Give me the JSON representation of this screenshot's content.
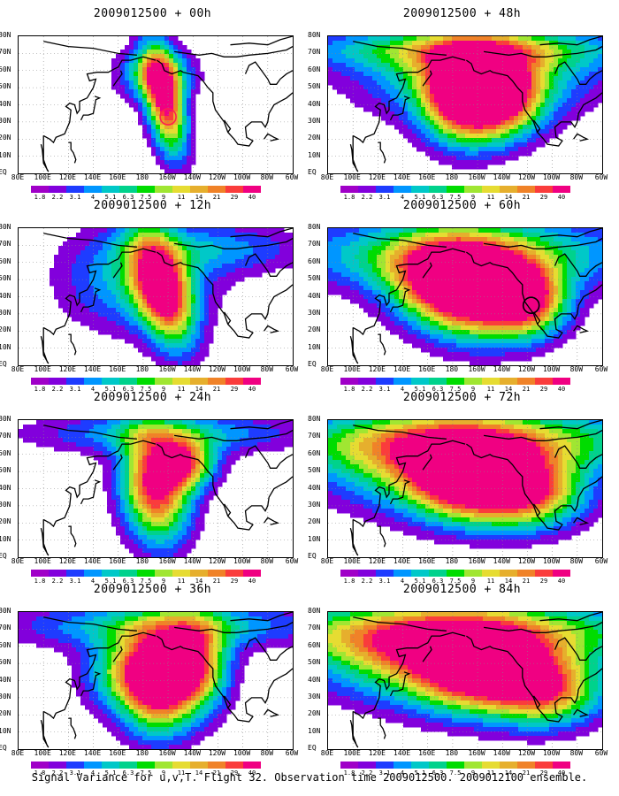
{
  "panels": [
    {
      "title": "2009012500 + 00h",
      "col": 0,
      "row": 0,
      "marker": {
        "color": "#ff2050",
        "lon": 200,
        "lat": 33
      }
    },
    {
      "title": "2009012500 + 12h",
      "col": 0,
      "row": 1
    },
    {
      "title": "2009012500 + 24h",
      "col": 0,
      "row": 2
    },
    {
      "title": "2009012500 + 36h",
      "col": 0,
      "row": 3
    },
    {
      "title": "2009012500 + 48h",
      "col": 1,
      "row": 0
    },
    {
      "title": "2009012500 + 60h",
      "col": 1,
      "row": 1,
      "marker": {
        "color": "#000000",
        "lon": 243,
        "lat": 35
      }
    },
    {
      "title": "2009012500 + 72h",
      "col": 1,
      "row": 2
    },
    {
      "title": "2009012500 + 84h",
      "col": 1,
      "row": 3
    }
  ],
  "lat_labels": [
    "80N",
    "70N",
    "60N",
    "50N",
    "40N",
    "30N",
    "20N",
    "10N",
    "EQ"
  ],
  "lon_labels": [
    "80E",
    "100E",
    "120E",
    "140E",
    "160E",
    "180",
    "160W",
    "140W",
    "120W",
    "100W",
    "80W",
    "60W"
  ],
  "colorbar": {
    "labels": [
      "1.8",
      "2.2",
      "3.1",
      "4",
      "5.1",
      "6.3",
      "7.5",
      "9",
      "11",
      "14",
      "21",
      "29",
      "40"
    ],
    "colors": [
      "#a000c8",
      "#8200dc",
      "#1e3cff",
      "#0096ff",
      "#00c8c8",
      "#00d28c",
      "#00dc00",
      "#a0e632",
      "#e6dc32",
      "#e6af2d",
      "#f08228",
      "#fa3c3c",
      "#f00082"
    ]
  },
  "caption": "Signal Variance for u,v,T. Flight 32. Observation time 2009012500. 2009012100 ensemble."
}
